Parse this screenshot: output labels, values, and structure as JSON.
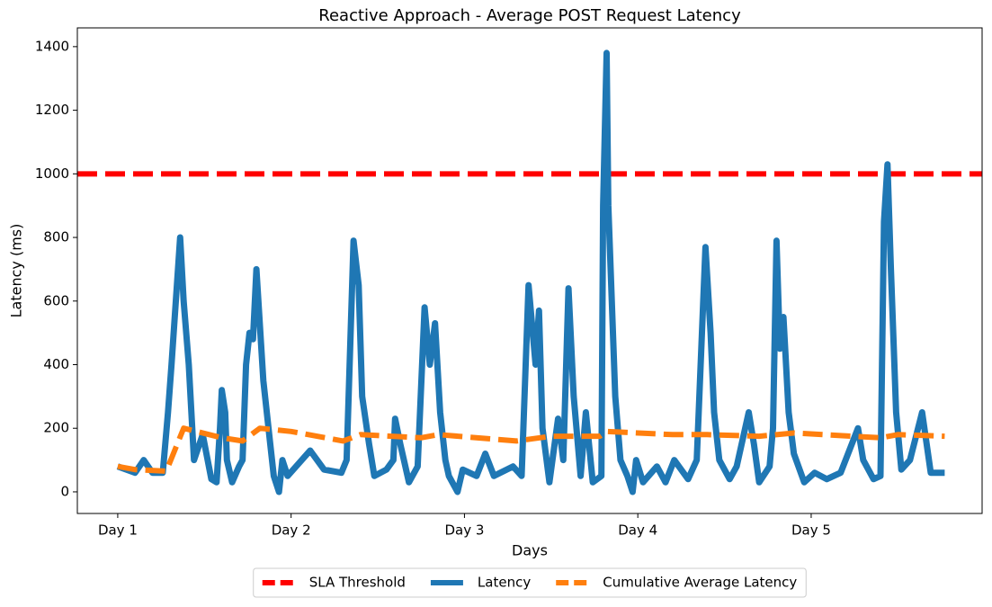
{
  "chart_data": {
    "type": "line",
    "title": "Reactive Approach - Average POST Request Latency",
    "xlabel": "Days",
    "ylabel": "Latency (ms)",
    "xlim": [
      0.767,
      5.986
    ],
    "ylim": [
      -68,
      1459
    ],
    "xticks": [
      {
        "value": 1,
        "label": "Day 1"
      },
      {
        "value": 2,
        "label": "Day 2"
      },
      {
        "value": 3,
        "label": "Day 3"
      },
      {
        "value": 4,
        "label": "Day 4"
      },
      {
        "value": 5,
        "label": "Day 5"
      }
    ],
    "yticks": [
      0,
      200,
      400,
      600,
      800,
      1000,
      1200,
      1400
    ],
    "legend": "lower center outside",
    "threshold": {
      "name": "SLA Threshold",
      "value": 1000,
      "color": "#ff0000",
      "dashed": true
    },
    "series": [
      {
        "name": "Latency",
        "color": "#1f77b4",
        "dashed": false,
        "x": [
          1.0,
          1.1,
          1.15,
          1.2,
          1.26,
          1.29,
          1.31,
          1.36,
          1.38,
          1.41,
          1.44,
          1.49,
          1.54,
          1.57,
          1.59,
          1.6,
          1.62,
          1.63,
          1.66,
          1.7,
          1.72,
          1.74,
          1.76,
          1.78,
          1.8,
          1.84,
          1.88,
          1.9,
          1.93,
          1.95,
          1.98,
          2.11,
          2.19,
          2.29,
          2.32,
          2.36,
          2.39,
          2.41,
          2.45,
          2.48,
          2.55,
          2.59,
          2.6,
          2.63,
          2.68,
          2.73,
          2.77,
          2.8,
          2.83,
          2.86,
          2.89,
          2.91,
          2.96,
          2.99,
          3.07,
          3.12,
          3.17,
          3.28,
          3.33,
          3.37,
          3.41,
          3.43,
          3.45,
          3.49,
          3.54,
          3.57,
          3.6,
          3.63,
          3.67,
          3.7,
          3.74,
          3.79,
          3.8,
          3.82,
          3.83,
          3.87,
          3.9,
          3.94,
          3.97,
          3.99,
          4.03,
          4.11,
          4.16,
          4.21,
          4.29,
          4.34,
          4.39,
          4.42,
          4.44,
          4.47,
          4.53,
          4.57,
          4.64,
          4.67,
          4.7,
          4.76,
          4.78,
          4.8,
          4.82,
          4.84,
          4.87,
          4.9,
          4.96,
          5.02,
          5.09,
          5.17,
          5.27,
          5.3,
          5.36,
          5.4,
          5.42,
          5.44,
          5.46,
          5.49,
          5.52,
          5.57,
          5.64,
          5.69,
          5.77
        ],
        "values": [
          80,
          60,
          100,
          60,
          60,
          250,
          400,
          800,
          600,
          400,
          100,
          180,
          40,
          30,
          200,
          320,
          250,
          100,
          30,
          80,
          100,
          400,
          500,
          480,
          700,
          350,
          150,
          50,
          0,
          100,
          50,
          130,
          70,
          60,
          100,
          790,
          650,
          300,
          150,
          50,
          70,
          100,
          230,
          150,
          30,
          80,
          580,
          400,
          530,
          250,
          100,
          50,
          0,
          70,
          50,
          120,
          50,
          80,
          50,
          650,
          400,
          570,
          200,
          30,
          230,
          100,
          640,
          300,
          50,
          250,
          30,
          50,
          900,
          1380,
          900,
          300,
          100,
          50,
          0,
          100,
          30,
          80,
          30,
          100,
          40,
          100,
          770,
          500,
          250,
          100,
          40,
          80,
          250,
          150,
          30,
          80,
          200,
          790,
          450,
          550,
          250,
          120,
          30,
          60,
          40,
          60,
          200,
          100,
          40,
          50,
          850,
          1030,
          700,
          250,
          70,
          100,
          250,
          60,
          60
        ]
      },
      {
        "name": "Cumulative Average Latency",
        "color": "#ff7f0e",
        "dashed": true,
        "x": [
          1.0,
          1.1,
          1.28,
          1.38,
          1.6,
          1.72,
          1.82,
          2.0,
          2.3,
          2.4,
          2.75,
          2.85,
          3.3,
          3.5,
          3.78,
          3.82,
          4.2,
          4.4,
          4.7,
          4.9,
          5.4,
          5.5,
          5.77
        ],
        "values": [
          80,
          70,
          65,
          200,
          170,
          160,
          200,
          190,
          160,
          180,
          170,
          180,
          160,
          175,
          175,
          190,
          180,
          180,
          175,
          185,
          170,
          180,
          175
        ]
      }
    ]
  }
}
